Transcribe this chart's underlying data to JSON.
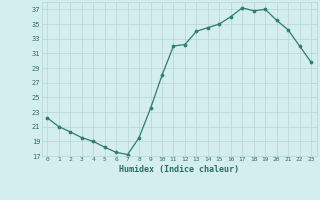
{
  "x": [
    0,
    1,
    2,
    3,
    4,
    5,
    6,
    7,
    8,
    9,
    10,
    11,
    12,
    13,
    14,
    15,
    16,
    17,
    18,
    19,
    20,
    21,
    22,
    23
  ],
  "y": [
    22.2,
    21.0,
    20.3,
    19.5,
    19.0,
    18.2,
    17.5,
    17.2,
    19.5,
    23.5,
    28.0,
    32.0,
    32.2,
    34.0,
    34.5,
    35.0,
    36.0,
    37.2,
    36.8,
    37.0,
    35.5,
    34.2,
    32.0,
    29.8
  ],
  "xlabel": "Humidex (Indice chaleur)",
  "ylim": [
    17,
    38
  ],
  "xlim": [
    -0.5,
    23.5
  ],
  "yticks": [
    17,
    19,
    21,
    23,
    25,
    27,
    29,
    31,
    33,
    35,
    37
  ],
  "xticks": [
    0,
    1,
    2,
    3,
    4,
    5,
    6,
    7,
    8,
    9,
    10,
    11,
    12,
    13,
    14,
    15,
    16,
    17,
    18,
    19,
    20,
    21,
    22,
    23
  ],
  "line_color": "#2e7d6e",
  "marker_color": "#2e7d6e",
  "bg_color": "#d4edef",
  "grid_color": "#b8d4d6",
  "text_color": "#2e6e62",
  "font_name": "monospace"
}
